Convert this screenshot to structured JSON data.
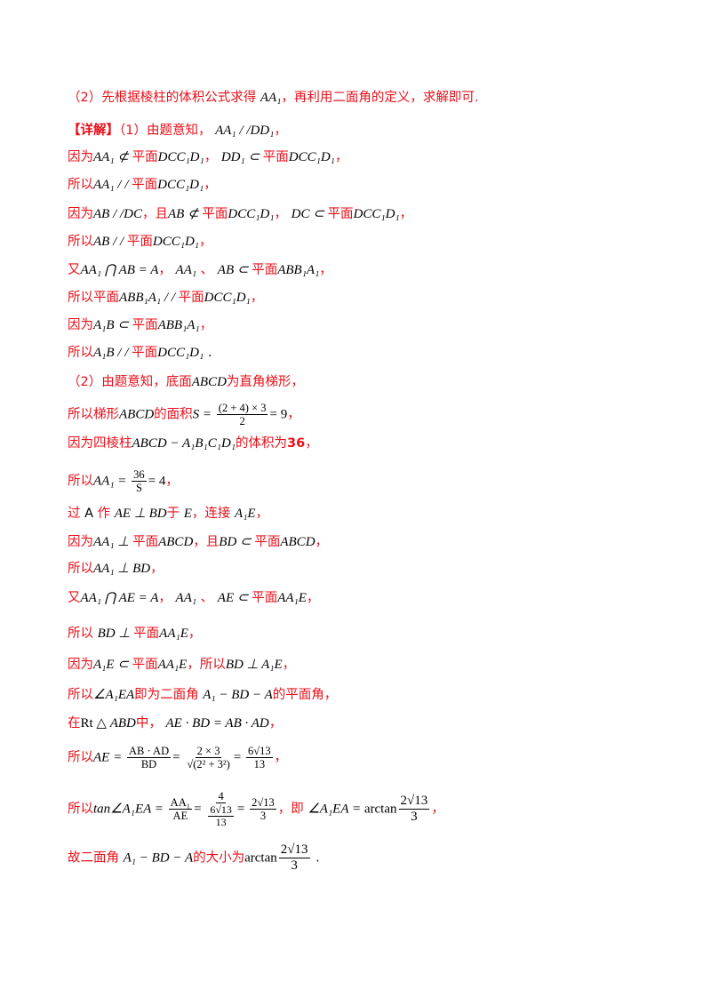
{
  "lines": [
    {
      "segments": [
        {
          "t": "（2）先根据棱柱的体积公式求得 ",
          "k": "text"
        },
        {
          "t": "AA₁",
          "k": "math"
        },
        {
          "t": "，再利用二面角的定义，求解即可.",
          "k": "text"
        }
      ]
    },
    {
      "segments": [
        {
          "t": "【详解】",
          "k": "bold"
        },
        {
          "t": "（1）由题意知， ",
          "k": "text"
        },
        {
          "t": "AA₁ / /DD₁",
          "k": "math"
        },
        {
          "t": "，",
          "k": "text"
        }
      ]
    },
    {
      "segments": [
        {
          "t": "因为",
          "k": "text"
        },
        {
          "t": "AA₁ ⊄ ",
          "k": "math"
        },
        {
          "t": "平面",
          "k": "text"
        },
        {
          "t": "DCC₁D₁",
          "k": "math"
        },
        {
          "t": "， ",
          "k": "text"
        },
        {
          "t": "DD₁ ⊂ ",
          "k": "math"
        },
        {
          "t": "平面",
          "k": "text"
        },
        {
          "t": "DCC₁D₁",
          "k": "math"
        },
        {
          "t": "，",
          "k": "text"
        }
      ]
    },
    {
      "segments": [
        {
          "t": "所以",
          "k": "text"
        },
        {
          "t": "AA₁ / / ",
          "k": "math"
        },
        {
          "t": "平面",
          "k": "text"
        },
        {
          "t": "DCC₁D₁",
          "k": "math"
        },
        {
          "t": "，",
          "k": "text"
        }
      ]
    },
    {
      "segments": [
        {
          "t": "因为",
          "k": "text"
        },
        {
          "t": "AB / /DC",
          "k": "math"
        },
        {
          "t": "，且",
          "k": "text"
        },
        {
          "t": "AB ⊄ ",
          "k": "math"
        },
        {
          "t": "平面",
          "k": "text"
        },
        {
          "t": "DCC₁D₁",
          "k": "math"
        },
        {
          "t": "， ",
          "k": "text"
        },
        {
          "t": "DC ⊂ ",
          "k": "math"
        },
        {
          "t": "平面",
          "k": "text"
        },
        {
          "t": "DCC₁D₁",
          "k": "math"
        },
        {
          "t": "，",
          "k": "text"
        }
      ]
    },
    {
      "segments": [
        {
          "t": "所以",
          "k": "text"
        },
        {
          "t": "AB / / ",
          "k": "math"
        },
        {
          "t": "平面",
          "k": "text"
        },
        {
          "t": "DCC₁D₁",
          "k": "math"
        },
        {
          "t": "，",
          "k": "text"
        }
      ]
    },
    {
      "segments": [
        {
          "t": "又",
          "k": "text"
        },
        {
          "t": "AA₁ ⋂ AB = A",
          "k": "math"
        },
        {
          "t": "， ",
          "k": "text"
        },
        {
          "t": "AA₁",
          "k": "math"
        },
        {
          "t": " 、 ",
          "k": "text"
        },
        {
          "t": "AB ⊂ ",
          "k": "math"
        },
        {
          "t": "平面",
          "k": "text"
        },
        {
          "t": "ABB₁A₁",
          "k": "math"
        },
        {
          "t": "，",
          "k": "text"
        }
      ]
    },
    {
      "segments": [
        {
          "t": "所以平面",
          "k": "text"
        },
        {
          "t": "ABB₁A₁ / / ",
          "k": "math"
        },
        {
          "t": "平面",
          "k": "text"
        },
        {
          "t": "DCC₁D₁",
          "k": "math"
        },
        {
          "t": "，",
          "k": "text"
        }
      ]
    },
    {
      "segments": [
        {
          "t": "因为",
          "k": "text"
        },
        {
          "t": "A₁B ⊂ ",
          "k": "math"
        },
        {
          "t": "平面",
          "k": "text"
        },
        {
          "t": "ABB₁A₁",
          "k": "math"
        },
        {
          "t": "，",
          "k": "text"
        }
      ]
    },
    {
      "segments": [
        {
          "t": "所以",
          "k": "text"
        },
        {
          "t": "A₁B / / ",
          "k": "math"
        },
        {
          "t": "平面",
          "k": "text"
        },
        {
          "t": "DCC₁D₁",
          "k": "math"
        },
        {
          "t": " .",
          "k": "black"
        }
      ]
    },
    {
      "segments": [
        {
          "t": "（2）由题意知，底面",
          "k": "text"
        },
        {
          "t": "ABCD",
          "k": "math"
        },
        {
          "t": "为直角梯形，",
          "k": "text"
        }
      ]
    },
    {
      "segments": [
        {
          "t": "所以梯形",
          "k": "text"
        },
        {
          "t": "ABCD",
          "k": "math"
        },
        {
          "t": "的面积",
          "k": "text"
        },
        {
          "t": "S = ",
          "k": "math"
        },
        {
          "t": "(2 + 4) × 3|2",
          "k": "frac"
        },
        {
          "t": "= 9",
          "k": "mathu"
        },
        {
          "t": "，",
          "k": "text"
        }
      ]
    },
    {
      "segments": [
        {
          "t": "因为四棱柱",
          "k": "text"
        },
        {
          "t": "ABCD − A₁B₁C₁D₁",
          "k": "math"
        },
        {
          "t": "的体积为",
          "k": "text"
        },
        {
          "t": "36",
          "k": "bold"
        },
        {
          "t": "，",
          "k": "text"
        }
      ]
    },
    {
      "segments": [
        {
          "t": "所以",
          "k": "text"
        },
        {
          "t": "AA₁ = ",
          "k": "math"
        },
        {
          "t": "36|S",
          "k": "frac"
        },
        {
          "t": "= 4",
          "k": "mathu"
        },
        {
          "t": "，",
          "k": "text"
        }
      ]
    },
    {
      "segments": [
        {
          "t": "过 ",
          "k": "text"
        },
        {
          "t": "A",
          "k": "black"
        },
        {
          "t": " 作 ",
          "k": "text"
        },
        {
          "t": "AE ⊥ BD",
          "k": "math"
        },
        {
          "t": "于 ",
          "k": "text"
        },
        {
          "t": "E",
          "k": "math"
        },
        {
          "t": "，连接 ",
          "k": "text"
        },
        {
          "t": "A₁E",
          "k": "math"
        },
        {
          "t": "，",
          "k": "text"
        }
      ]
    },
    {
      "segments": [
        {
          "t": "因为",
          "k": "text"
        },
        {
          "t": "AA₁ ⊥ ",
          "k": "math"
        },
        {
          "t": "平面",
          "k": "text"
        },
        {
          "t": "ABCD",
          "k": "math"
        },
        {
          "t": "，且",
          "k": "text"
        },
        {
          "t": "BD ⊂ ",
          "k": "math"
        },
        {
          "t": "平面",
          "k": "text"
        },
        {
          "t": "ABCD",
          "k": "math"
        },
        {
          "t": "，",
          "k": "text"
        }
      ]
    },
    {
      "segments": [
        {
          "t": "所以",
          "k": "text"
        },
        {
          "t": "AA₁ ⊥ BD",
          "k": "math"
        },
        {
          "t": "，",
          "k": "text"
        }
      ]
    },
    {
      "segments": [
        {
          "t": "又",
          "k": "text"
        },
        {
          "t": "AA₁ ⋂ AE = A",
          "k": "math"
        },
        {
          "t": "， ",
          "k": "text"
        },
        {
          "t": "AA₁",
          "k": "math"
        },
        {
          "t": " 、 ",
          "k": "text"
        },
        {
          "t": "AE ⊂ ",
          "k": "math"
        },
        {
          "t": "平面",
          "k": "text"
        },
        {
          "t": "AA₁E",
          "k": "math"
        },
        {
          "t": "，",
          "k": "text"
        }
      ]
    },
    {
      "segments": [
        {
          "t": "所以 ",
          "k": "text"
        },
        {
          "t": "BD ⊥ ",
          "k": "math"
        },
        {
          "t": "平面",
          "k": "text"
        },
        {
          "t": "AA₁E",
          "k": "math"
        },
        {
          "t": "，",
          "k": "text"
        }
      ]
    },
    {
      "segments": [
        {
          "t": "因为",
          "k": "text"
        },
        {
          "t": "A₁E ⊂ ",
          "k": "math"
        },
        {
          "t": "平面",
          "k": "text"
        },
        {
          "t": "AA₁E",
          "k": "math"
        },
        {
          "t": "，所以",
          "k": "text"
        },
        {
          "t": "BD ⊥ A₁E",
          "k": "math"
        },
        {
          "t": "，",
          "k": "text"
        }
      ]
    },
    {
      "segments": [
        {
          "t": "所以",
          "k": "text"
        },
        {
          "t": "∠A₁EA",
          "k": "math"
        },
        {
          "t": "即为二面角 ",
          "k": "text"
        },
        {
          "t": "A₁ − BD − A",
          "k": "math"
        },
        {
          "t": "的平面角，",
          "k": "text"
        }
      ]
    },
    {
      "segments": [
        {
          "t": "在",
          "k": "text"
        },
        {
          "t": "Rt △ ",
          "k": "mathu"
        },
        {
          "t": "ABD",
          "k": "math"
        },
        {
          "t": "中， ",
          "k": "text"
        },
        {
          "t": "AE · BD = AB · AD",
          "k": "math"
        },
        {
          "t": "，",
          "k": "text"
        }
      ]
    },
    {
      "segments": [
        {
          "t": "所以",
          "k": "text"
        },
        {
          "t": "AE = ",
          "k": "math"
        },
        {
          "t": "AB · AD|BD",
          "k": "frac"
        },
        {
          "t": "= ",
          "k": "mathu"
        },
        {
          "t": "2 × 3|√(2² + 3²)",
          "k": "frac"
        },
        {
          "t": "= ",
          "k": "mathu"
        },
        {
          "t": "6√13|13",
          "k": "frac"
        },
        {
          "t": "，",
          "k": "text"
        }
      ]
    },
    {
      "segments": [
        {
          "t": "所以",
          "k": "text"
        },
        {
          "t": "tan∠A₁EA = ",
          "k": "math"
        },
        {
          "t": "AA₁|AE",
          "k": "frac"
        },
        {
          "t": "= ",
          "k": "mathu"
        },
        {
          "t": "4|6√13/13",
          "k": "fracnest"
        },
        {
          "t": "= ",
          "k": "mathu"
        },
        {
          "t": "2√13|3",
          "k": "frac"
        },
        {
          "t": "，即 ",
          "k": "text"
        },
        {
          "t": "∠A₁EA = ",
          "k": "math"
        },
        {
          "t": "arctan",
          "k": "mathu"
        },
        {
          "t": "2√13|3",
          "k": "fracbig"
        },
        {
          "t": "，",
          "k": "text"
        }
      ]
    },
    {
      "segments": [
        {
          "t": "故二面角 ",
          "k": "text"
        },
        {
          "t": "A₁ − BD − A",
          "k": "math"
        },
        {
          "t": "的大小为",
          "k": "text"
        },
        {
          "t": "arctan",
          "k": "mathu"
        },
        {
          "t": "2√13|3",
          "k": "fracbig"
        },
        {
          "t": " .",
          "k": "black"
        }
      ]
    }
  ]
}
